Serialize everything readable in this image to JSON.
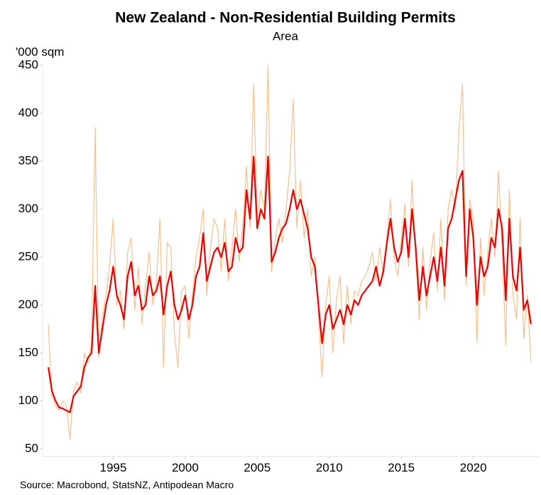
{
  "chart_data": {
    "type": "line",
    "title": "New Zealand - Non-Residential Building Permits",
    "subtitle": "Area",
    "y_label": "'000 sqm",
    "source": "Source: Macrobond, StatsNZ, Antipodean Macro",
    "x": [
      1990.5,
      1990.75,
      1991,
      1991.25,
      1991.5,
      1991.75,
      1992,
      1992.25,
      1992.5,
      1992.75,
      1993,
      1993.25,
      1993.5,
      1993.75,
      1994,
      1994.25,
      1994.5,
      1994.75,
      1995,
      1995.25,
      1995.5,
      1995.75,
      1996,
      1996.25,
      1996.5,
      1996.75,
      1997,
      1997.25,
      1997.5,
      1997.75,
      1998,
      1998.25,
      1998.5,
      1998.75,
      1999,
      1999.25,
      1999.5,
      1999.75,
      2000,
      2000.25,
      2000.5,
      2000.75,
      2001,
      2001.25,
      2001.5,
      2001.75,
      2002,
      2002.25,
      2002.5,
      2002.75,
      2003,
      2003.25,
      2003.5,
      2003.75,
      2004,
      2004.25,
      2004.5,
      2004.75,
      2005,
      2005.25,
      2005.5,
      2005.75,
      2006,
      2006.25,
      2006.5,
      2006.75,
      2007,
      2007.25,
      2007.5,
      2007.75,
      2008,
      2008.25,
      2008.5,
      2008.75,
      2009,
      2009.25,
      2009.5,
      2009.75,
      2010,
      2010.25,
      2010.5,
      2010.75,
      2011,
      2011.25,
      2011.5,
      2011.75,
      2012,
      2012.25,
      2012.5,
      2012.75,
      2013,
      2013.25,
      2013.5,
      2013.75,
      2014,
      2014.25,
      2014.5,
      2014.75,
      2015,
      2015.25,
      2015.5,
      2015.75,
      2016,
      2016.25,
      2016.5,
      2016.75,
      2017,
      2017.25,
      2017.5,
      2017.75,
      2018,
      2018.25,
      2018.5,
      2018.75,
      2019,
      2019.25,
      2019.5,
      2019.75,
      2020,
      2020.25,
      2020.5,
      2020.75,
      2021,
      2021.25,
      2021.5,
      2021.75,
      2022,
      2022.25,
      2022.5,
      2022.75,
      2023,
      2023.25,
      2023.5,
      2023.75,
      2024
    ],
    "series": [
      {
        "color": "#f6c08c",
        "width": 1.2,
        "values": [
          180,
          105,
          95,
          90,
          100,
          95,
          60,
          110,
          120,
          108,
          150,
          140,
          160,
          385,
          145,
          190,
          210,
          240,
          290,
          200,
          215,
          175,
          255,
          270,
          195,
          240,
          180,
          220,
          255,
          200,
          225,
          290,
          135,
          265,
          260,
          170,
          135,
          215,
          220,
          165,
          210,
          250,
          270,
          300,
          210,
          260,
          290,
          280,
          235,
          290,
          225,
          260,
          300,
          245,
          285,
          345,
          280,
          430,
          290,
          320,
          300,
          450,
          235,
          270,
          290,
          265,
          300,
          340,
          415,
          280,
          330,
          270,
          300,
          230,
          250,
          190,
          125,
          200,
          230,
          150,
          205,
          230,
          160,
          220,
          180,
          215,
          210,
          225,
          230,
          240,
          255,
          225,
          260,
          230,
          270,
          310,
          250,
          230,
          270,
          305,
          240,
          330,
          250,
          185,
          260,
          195,
          245,
          275,
          215,
          290,
          205,
          300,
          320,
          300,
          380,
          430,
          220,
          310,
          290,
          160,
          270,
          210,
          255,
          290,
          250,
          340,
          260,
          158,
          320,
          210,
          185,
          290,
          165,
          210,
          140
        ]
      },
      {
        "color": "#ee0000",
        "width": 2.2,
        "values": [
          135,
          110,
          100,
          93,
          92,
          90,
          88,
          105,
          110,
          115,
          135,
          145,
          150,
          220,
          150,
          175,
          200,
          215,
          240,
          210,
          200,
          185,
          230,
          245,
          210,
          220,
          195,
          200,
          230,
          210,
          215,
          230,
          190,
          220,
          235,
          200,
          185,
          195,
          210,
          185,
          200,
          230,
          240,
          275,
          225,
          240,
          255,
          260,
          250,
          265,
          235,
          240,
          270,
          255,
          260,
          320,
          290,
          355,
          280,
          300,
          290,
          355,
          245,
          255,
          270,
          280,
          285,
          300,
          320,
          300,
          310,
          295,
          280,
          250,
          240,
          200,
          160,
          190,
          200,
          175,
          185,
          195,
          180,
          200,
          190,
          205,
          200,
          210,
          215,
          220,
          225,
          240,
          220,
          235,
          265,
          290,
          260,
          245,
          255,
          290,
          250,
          300,
          260,
          205,
          240,
          210,
          230,
          250,
          225,
          260,
          220,
          280,
          290,
          310,
          330,
          340,
          230,
          300,
          270,
          200,
          250,
          230,
          240,
          270,
          260,
          300,
          280,
          205,
          290,
          230,
          215,
          260,
          195,
          205,
          180
        ]
      }
    ],
    "xlim": [
      1990.1,
      2024.6
    ],
    "xticks": [
      1995,
      2000,
      2005,
      2010,
      2015,
      2020
    ],
    "ylim": [
      42,
      452
    ],
    "yticks": [
      50,
      100,
      150,
      200,
      250,
      300,
      350,
      400,
      450
    ]
  }
}
